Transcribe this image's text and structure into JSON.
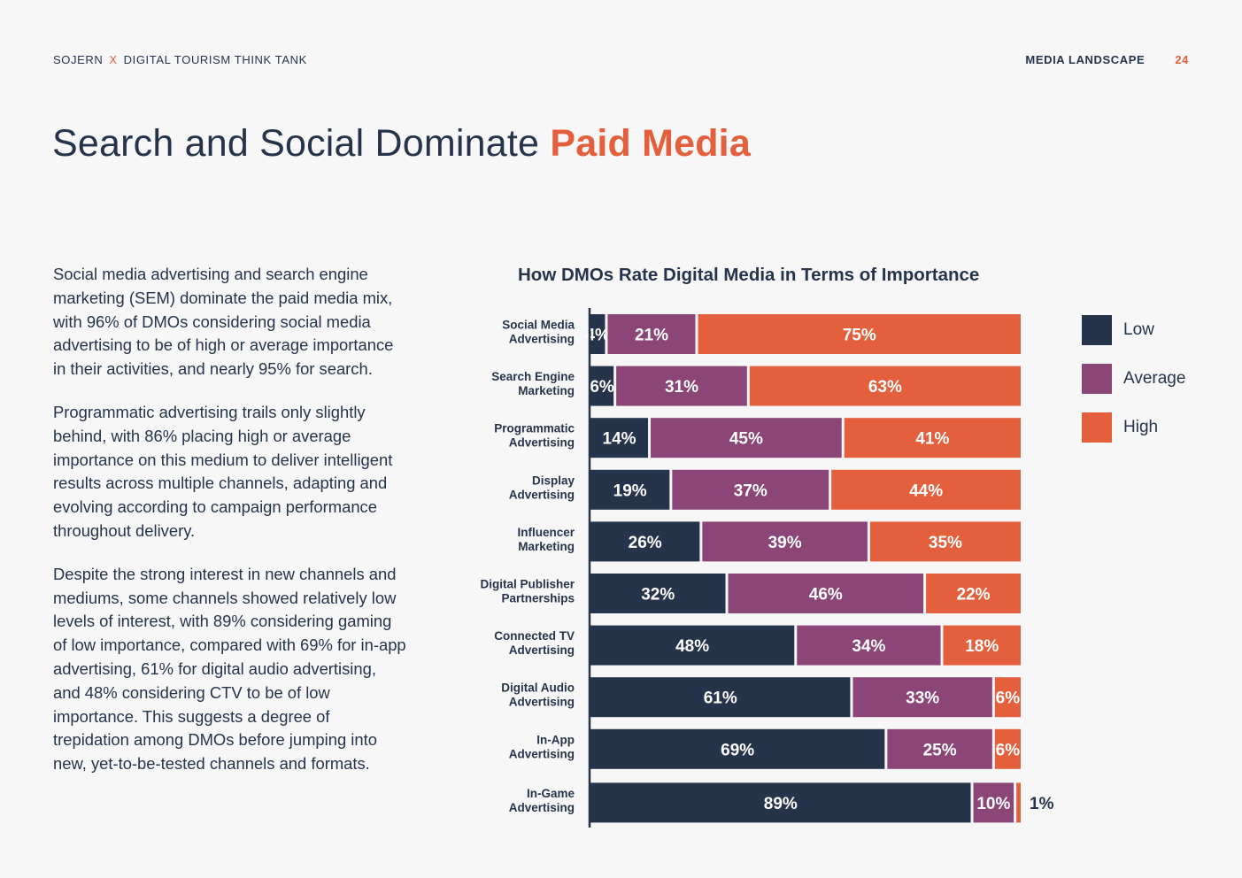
{
  "header": {
    "brand_left": "SOJERN",
    "separator": "X",
    "brand_right": "DIGITAL TOURISM THINK TANK",
    "section": "MEDIA LANDSCAPE",
    "page_number": "24"
  },
  "title": {
    "main": "Search and Social Dominate ",
    "accent": "Paid Media"
  },
  "paragraphs": [
    "Social media advertising and search engine marketing (SEM) dominate the paid media mix, with 96% of DMOs considering social media advertising to be of high or average importance in their activities, and nearly 95% for search.",
    "Programmatic advertising trails only slightly behind, with 86% placing high or average importance on this medium to deliver intelligent results across multiple channels, adapting and evolving according to campaign performance throughout delivery.",
    "Despite the strong interest in new channels and mediums, some channels showed relatively low levels of interest, with 89% considering gaming of low importance, compared with 69% for in-app advertising, 61% for digital audio advertising, and 48% considering CTV to be of low importance. This suggests a degree of trepidation among DMOs before jumping into new, yet-to-be-tested channels and formats."
  ],
  "colors": {
    "low": "#26344b",
    "average": "#8b4577",
    "high": "#e4603c"
  },
  "chart_data": {
    "type": "bar",
    "orientation": "horizontal",
    "stacked": true,
    "title": "How DMOs Rate Digital Media in Terms of Importance",
    "unit": "%",
    "categories": [
      [
        "Social Media",
        "Advertising"
      ],
      [
        "Search Engine",
        "Marketing"
      ],
      [
        "Programmatic",
        "Advertising"
      ],
      [
        "Display",
        "Advertising"
      ],
      [
        "Influencer",
        "Marketing"
      ],
      [
        "Digital Publisher",
        "Partnerships"
      ],
      [
        "Connected TV",
        "Advertising"
      ],
      [
        "Digital Audio",
        "Advertising"
      ],
      [
        "In-App",
        "Advertising"
      ],
      [
        "In-Game",
        "Advertising"
      ]
    ],
    "series": [
      {
        "name": "Low",
        "key": "low",
        "values": [
          4,
          6,
          14,
          19,
          26,
          32,
          48,
          61,
          69,
          89
        ]
      },
      {
        "name": "Average",
        "key": "average",
        "values": [
          21,
          31,
          45,
          37,
          39,
          46,
          34,
          33,
          25,
          10
        ]
      },
      {
        "name": "High",
        "key": "high",
        "values": [
          75,
          63,
          41,
          44,
          35,
          22,
          18,
          6,
          6,
          1
        ]
      }
    ],
    "xlim": [
      0,
      100
    ],
    "legend_position": "right"
  }
}
